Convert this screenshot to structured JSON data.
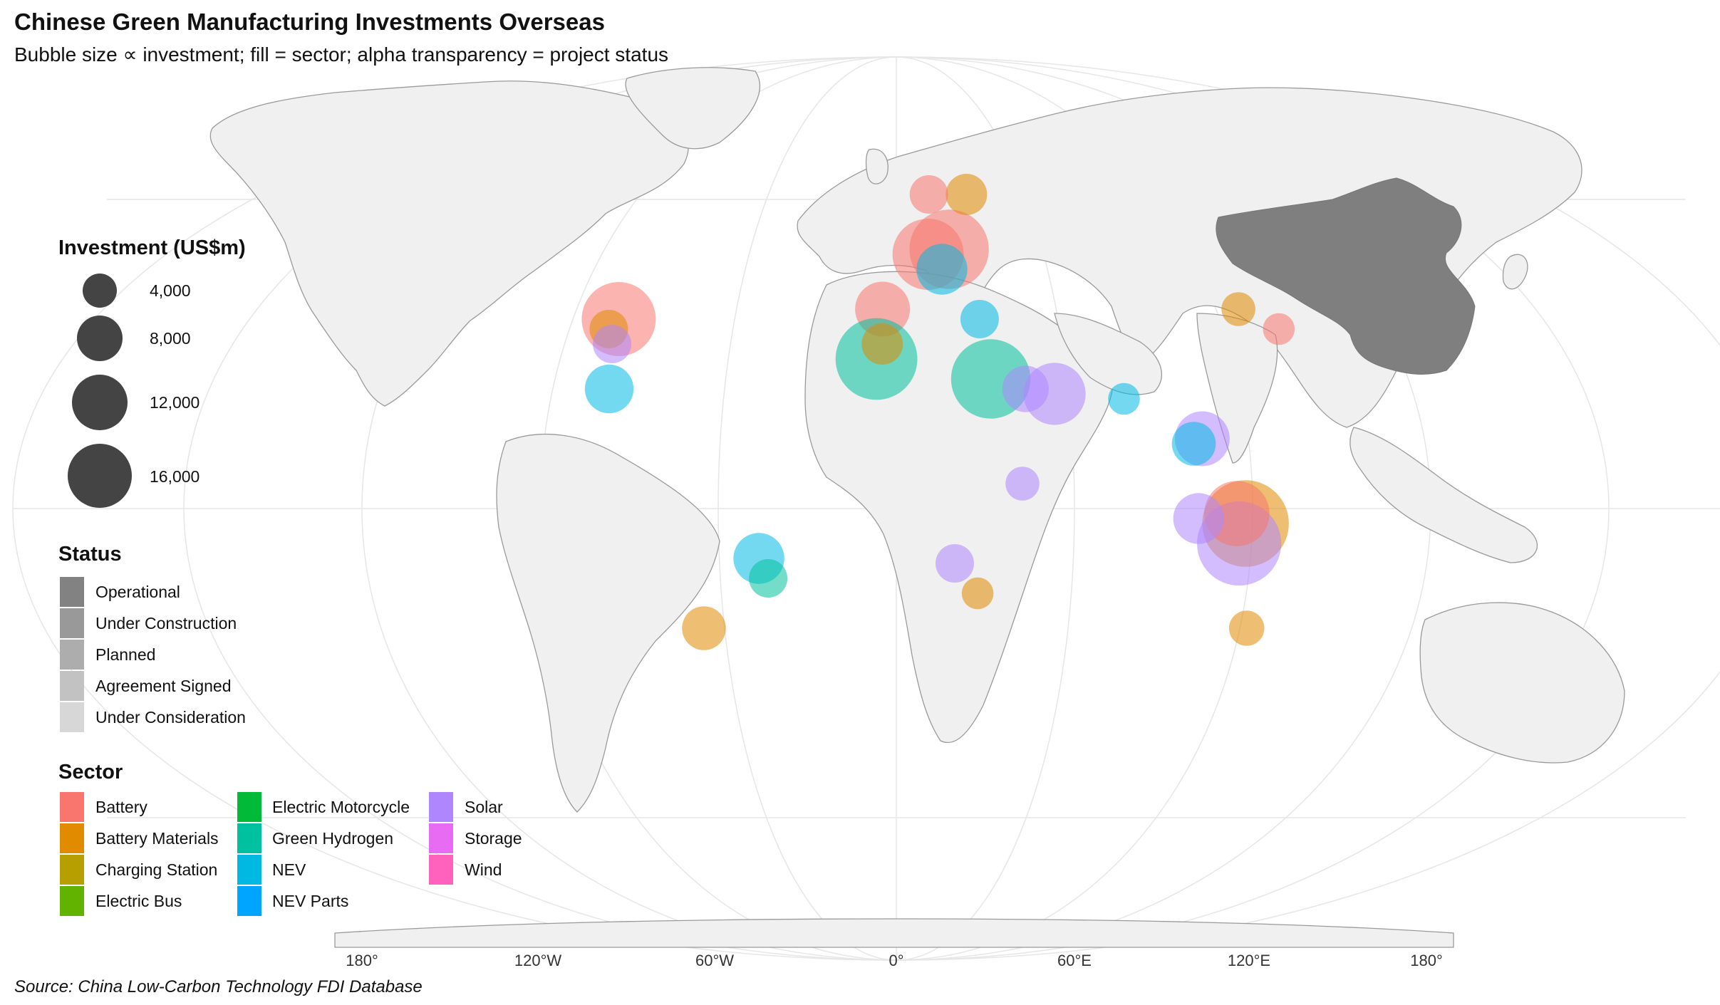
{
  "title": "Chinese Green Manufacturing Investments Overseas",
  "subtitle": "Bubble size ∝ investment; fill = sector; alpha transparency = project status",
  "source": "Source: China Low-Carbon Technology FDI Database",
  "legend": {
    "investment_title": "Investment (US$m)",
    "investment_values": [
      "4,000",
      "8,000",
      "12,000",
      "16,000"
    ],
    "status_title": "Status",
    "statuses": [
      "Operational",
      "Under Construction",
      "Planned",
      "Agreement Signed",
      "Under Consideration"
    ],
    "sector_title": "Sector",
    "sectors": [
      "Battery",
      "Battery Materials",
      "Charging Station",
      "Electric Bus",
      "Electric Motorcycle",
      "Green Hydrogen",
      "NEV",
      "NEV Parts",
      "Solar",
      "Storage",
      "Wind"
    ]
  },
  "colors": {
    "Battery": "#F8766D",
    "Battery Materials": "#E08B00",
    "Charging Station": "#B79F00",
    "Electric Bus": "#62B300",
    "Electric Motorcycle": "#00BA38",
    "Green Hydrogen": "#00C19F",
    "NEV": "#00B9E3",
    "NEV Parts": "#00A5FF",
    "Solar": "#AE87FF",
    "Storage": "#E76BF3",
    "Wind": "#FF62BC",
    "china_fill": "#7f7f7f",
    "land_fill": "#f0f0f0"
  },
  "axis": {
    "lon_labels": [
      "180°",
      "120°W",
      "60°W",
      "0°",
      "60°E",
      "120°E",
      "180°"
    ]
  },
  "map_data": {
    "highlight_country": "China",
    "projects": [
      {
        "sector": "Battery",
        "lon": -100,
        "lat": 38,
        "inv": 12000
      },
      {
        "sector": "Battery Materials",
        "lon": -103,
        "lat": 36,
        "inv": 2500
      },
      {
        "sector": "Solar",
        "lon": -101,
        "lat": 33,
        "inv": 2500
      },
      {
        "sector": "NEV",
        "lon": -100,
        "lat": 24,
        "inv": 4500
      },
      {
        "sector": "Battery",
        "lon": 12,
        "lat": 51,
        "inv": 11000
      },
      {
        "sector": "Battery",
        "lon": 20,
        "lat": 52,
        "inv": 14000
      },
      {
        "sector": "NEV",
        "lon": 17,
        "lat": 48,
        "inv": 5000
      },
      {
        "sector": "Battery",
        "lon": -5,
        "lat": 40,
        "inv": 6000
      },
      {
        "sector": "Battery Materials",
        "lon": 28,
        "lat": 63,
        "inv": 3000
      },
      {
        "sector": "Battery",
        "lon": 13,
        "lat": 63,
        "inv": 2500
      },
      {
        "sector": "Green Hydrogen",
        "lon": -7,
        "lat": 30,
        "inv": 15000
      },
      {
        "sector": "Battery Materials",
        "lon": -5,
        "lat": 33,
        "inv": 3000
      },
      {
        "sector": "Green Hydrogen",
        "lon": 33,
        "lat": 26,
        "inv": 14000
      },
      {
        "sector": "NEV",
        "lon": 30,
        "lat": 38,
        "inv": 2500
      },
      {
        "sector": "Solar",
        "lon": 55,
        "lat": 23,
        "inv": 8000
      },
      {
        "sector": "Solar",
        "lon": 45,
        "lat": 24,
        "inv": 4000
      },
      {
        "sector": "Battery Materials",
        "lon": 119,
        "lat": -3,
        "inv": 17000
      },
      {
        "sector": "Solar",
        "lon": 117,
        "lat": -7,
        "inv": 16000
      },
      {
        "sector": "Battery",
        "lon": 116,
        "lat": -1,
        "inv": 9000
      },
      {
        "sector": "Solar",
        "lon": 105,
        "lat": 14,
        "inv": 6000
      },
      {
        "sector": "NEV",
        "lon": 102,
        "lat": 13,
        "inv": 3500
      },
      {
        "sector": "Solar",
        "lon": 103,
        "lat": -2,
        "inv": 5000
      },
      {
        "sector": "NEV",
        "lon": -47,
        "lat": -10,
        "inv": 5000
      },
      {
        "sector": "Green Hydrogen",
        "lon": -44,
        "lat": -14,
        "inv": 2500
      },
      {
        "sector": "Battery Materials",
        "lon": -67,
        "lat": -24,
        "inv": 3500
      },
      {
        "sector": "Solar",
        "lon": 20,
        "lat": -11,
        "inv": 2500
      },
      {
        "sector": "Battery Materials",
        "lon": 28,
        "lat": -17,
        "inv": 1500
      },
      {
        "sector": "Battery Materials",
        "lon": 122,
        "lat": -24,
        "inv": 2000
      },
      {
        "sector": "Battery",
        "lon": 137,
        "lat": 36,
        "inv": 1500
      },
      {
        "sector": "Battery Materials",
        "lon": 124,
        "lat": 40,
        "inv": 1800
      },
      {
        "sector": "NEV",
        "lon": 79,
        "lat": 22,
        "inv": 1500
      },
      {
        "sector": "Solar",
        "lon": 43,
        "lat": 5,
        "inv": 1800
      }
    ]
  }
}
